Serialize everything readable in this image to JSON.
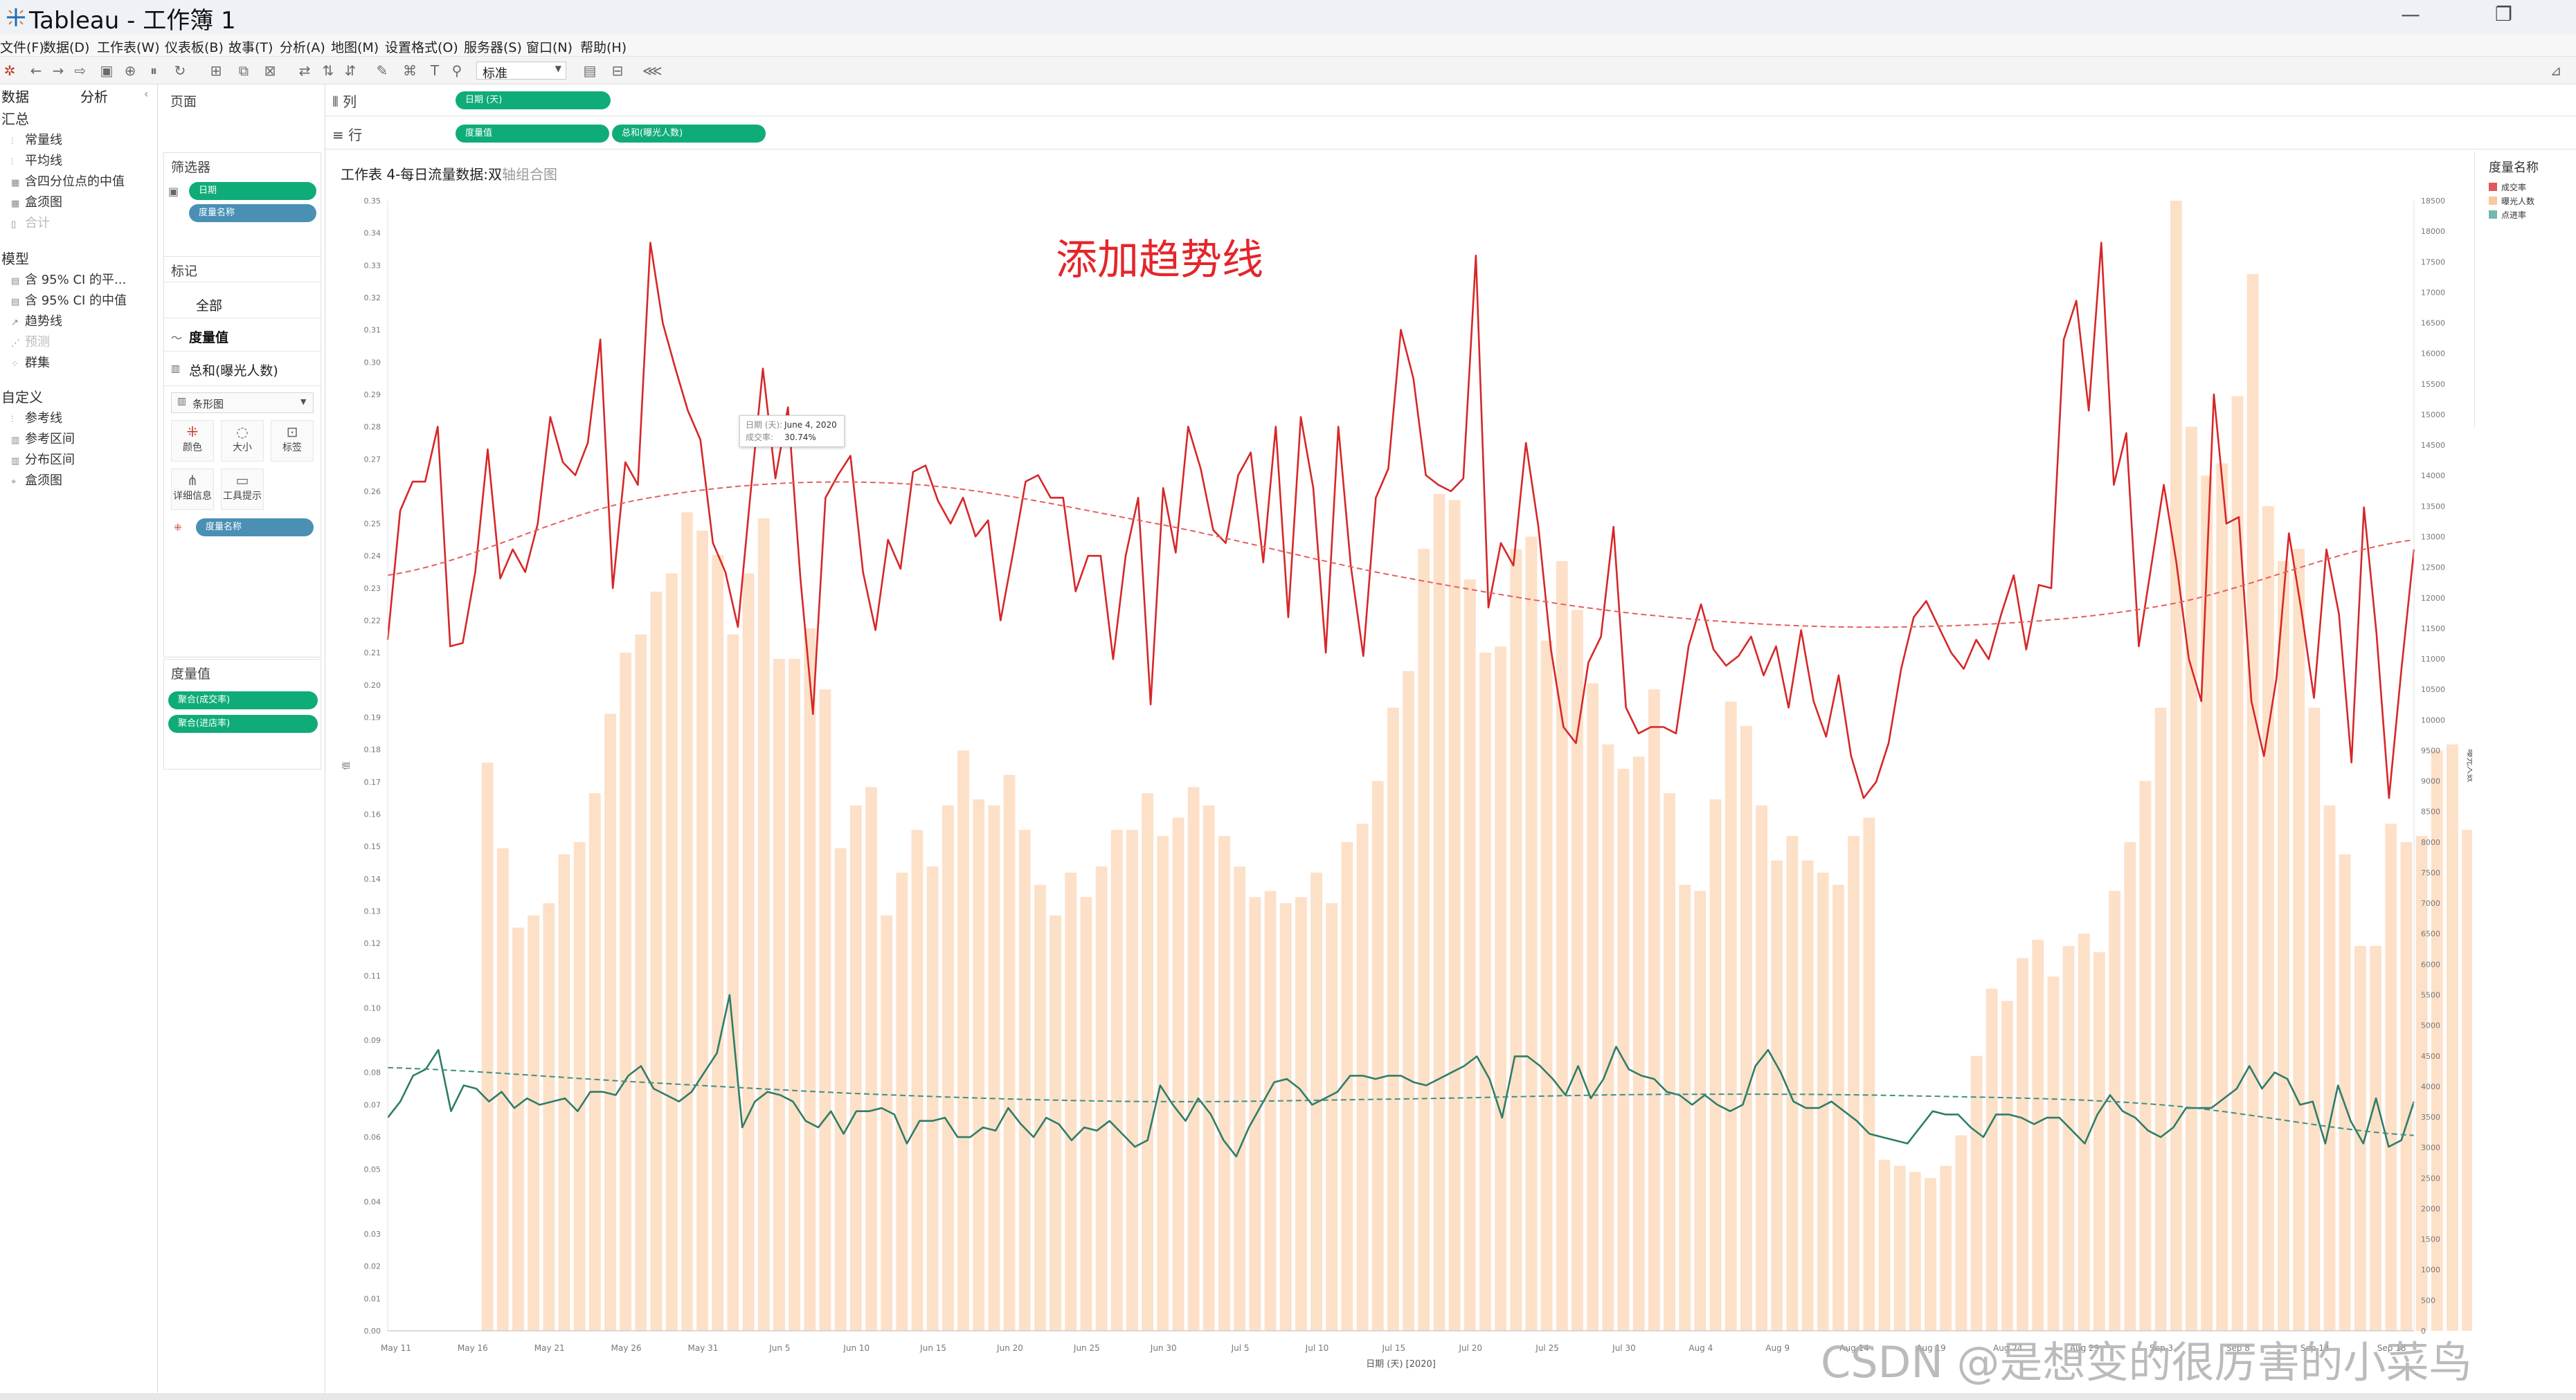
{
  "window": {
    "app_title": "Tableau - 工作簿 1",
    "minimize_glyph": "—",
    "restore_glyph": "❐"
  },
  "menu": [
    "文件(F)",
    "数据(D)",
    "工作表(W)",
    "仪表板(B)",
    "故事(T)",
    "分析(A)",
    "地图(M)",
    "设置格式(O)",
    "服务器(S)",
    "窗口(N)",
    "帮助(H)"
  ],
  "toolbar": {
    "fit_value": "标准",
    "icons": [
      "tableau-logo-icon",
      "undo-icon",
      "redo-icon",
      "forward-icon",
      "save-icon",
      "new-data-source-icon",
      "pause-icon",
      "refresh-icon",
      "new-sheet-icon",
      "duplicate-sheet-icon",
      "clear-sheet-icon",
      "swap-icon",
      "sort-asc-icon",
      "sort-desc-icon",
      "highlight-icon",
      "group-icon",
      "labels-icon",
      "pin-icon",
      "show-cards-icon",
      "presentation-icon",
      "share-icon",
      "show-me-icon"
    ]
  },
  "left_panel": {
    "tab_data": "数据",
    "tab_analytics": "分析",
    "summary_header": "汇总",
    "summary_items": [
      {
        "label": "常量线",
        "disabled": false
      },
      {
        "label": "平均线",
        "disabled": false
      },
      {
        "label": "含四分位点的中值",
        "disabled": false
      },
      {
        "label": "盒须图",
        "disabled": false
      },
      {
        "label": "合计",
        "disabled": true
      }
    ],
    "model_header": "模型",
    "model_items": [
      {
        "label": "含 95% CI 的平...",
        "disabled": false
      },
      {
        "label": "含 95% CI 的中值",
        "disabled": false
      },
      {
        "label": "趋势线",
        "disabled": false
      },
      {
        "label": "预测",
        "disabled": true
      },
      {
        "label": "群集",
        "disabled": false
      }
    ],
    "custom_header": "自定义",
    "custom_items": [
      {
        "label": "参考线",
        "disabled": false
      },
      {
        "label": "参考区间",
        "disabled": false
      },
      {
        "label": "分布区间",
        "disabled": false
      },
      {
        "label": "盒须图",
        "disabled": false
      }
    ]
  },
  "cards": {
    "pages_title": "页面",
    "filters_title": "筛选器",
    "filters": [
      "日期",
      "度量名称"
    ],
    "marks_title": "标记",
    "marks_all": "全部",
    "marks_measure_values": "度量值",
    "marks_sum_exposure": "总和(曝光人数)",
    "mark_type": "条形图",
    "mark_buttons": [
      {
        "label": "颜色",
        "glyph": "⁜"
      },
      {
        "label": "大小",
        "glyph": "◌"
      },
      {
        "label": "标签",
        "glyph": "⊡"
      },
      {
        "label": "详细信息",
        "glyph": "⋔"
      },
      {
        "label": "工具提示",
        "glyph": "▭"
      }
    ],
    "color_pill": "度量名称",
    "measure_values_title": "度量值",
    "measure_values": [
      "聚合(成交率)",
      "聚合(进店率)"
    ]
  },
  "shelves": {
    "columns_label": "列",
    "rows_label": "行",
    "columns_pills": [
      "日期 (天)"
    ],
    "rows_pills": [
      "度量值",
      "总和(曝光人数)"
    ]
  },
  "view": {
    "title_main": "工作表 4-每日流量数据:双",
    "title_muted": "轴组合图",
    "overlay_text": "添加趋势线",
    "watermark": "CSDN @是想变的很厉害的小菜鸟"
  },
  "tooltip": {
    "date_key": "日期 (天):",
    "date_value": "June 4, 2020",
    "rate_key": "成交率:",
    "rate_value": "30.74%"
  },
  "legend": {
    "title": "度量名称",
    "items": [
      {
        "label": "成交率",
        "color": "#e15759"
      },
      {
        "label": "曝光人数",
        "color": "#f9c89f"
      },
      {
        "label": "点进率",
        "color": "#76b7b2"
      }
    ]
  },
  "chart_data": {
    "type": "bar+line",
    "xlabel": "日期 (天) [2020]",
    "ylabel_left": "值",
    "ylabel_right": "曝光人数",
    "x_ticks": [
      "May 11",
      "May 16",
      "May 21",
      "May 26",
      "May 31",
      "Jun 5",
      "Jun 10",
      "Jun 15",
      "Jun 20",
      "Jun 25",
      "Jun 30",
      "Jul 5",
      "Jul 10",
      "Jul 15",
      "Jul 20",
      "Jul 25",
      "Jul 30",
      "Aug 4",
      "Aug 9",
      "Aug 14",
      "Aug 19",
      "Aug 24",
      "Aug 29",
      "Sep 3",
      "Sep 8",
      "Sep 13",
      "Sep 18"
    ],
    "y_left_ticks": [
      "0.00",
      "0.01",
      "0.02",
      "0.03",
      "0.04",
      "0.05",
      "0.06",
      "0.07",
      "0.08",
      "0.09",
      "0.10",
      "0.11",
      "0.12",
      "0.13",
      "0.14",
      "0.15",
      "0.16",
      "0.17",
      "0.18",
      "0.19",
      "0.20",
      "0.21",
      "0.22",
      "0.23",
      "0.24",
      "0.25",
      "0.26",
      "0.27",
      "0.28",
      "0.29",
      "0.30",
      "0.31",
      "0.32",
      "0.33",
      "0.34",
      "0.35"
    ],
    "y_right_ticks": [
      "0",
      "500",
      "1000",
      "1500",
      "2000",
      "2500",
      "3000",
      "3500",
      "4000",
      "4500",
      "5000",
      "5500",
      "6000",
      "6500",
      "7000",
      "7500",
      "8000",
      "8500",
      "9000",
      "9500",
      "10000",
      "10500",
      "11000",
      "11500",
      "12000",
      "12500",
      "13000",
      "13500",
      "14000",
      "14500",
      "15000",
      "15500",
      "16000",
      "16500",
      "17000",
      "17500",
      "18000",
      "18500"
    ],
    "y_left_range": [
      0,
      0.35
    ],
    "y_right_range": [
      0,
      18500
    ],
    "first_day_tick_index": 1.2,
    "series": [
      {
        "name": "曝光人数",
        "axis": "right",
        "kind": "bar",
        "color": "#fde0c8",
        "values": [
          9300,
          7900,
          6600,
          6800,
          7000,
          7800,
          8000,
          8800,
          10100,
          11100,
          11400,
          12100,
          12400,
          13400,
          13100,
          12700,
          11400,
          12400,
          13300,
          11000,
          11000,
          11500,
          10500,
          7900,
          8600,
          8900,
          6800,
          7500,
          8200,
          7600,
          8600,
          9500,
          8700,
          8600,
          9100,
          8200,
          7300,
          6800,
          7500,
          7100,
          7600,
          8200,
          8200,
          8800,
          8100,
          8400,
          8900,
          8600,
          8100,
          7600,
          7100,
          7200,
          7000,
          7100,
          7500,
          7000,
          8000,
          8300,
          9000,
          10200,
          10800,
          12800,
          13700,
          13600,
          12300,
          11100,
          11200,
          12800,
          13000,
          11300,
          12600,
          11800,
          10600,
          9600,
          9200,
          9400,
          10500,
          8800,
          7300,
          7200,
          8700,
          10300,
          9900,
          8600,
          7700,
          8100,
          7700,
          7500,
          7300,
          8100,
          8400,
          2800,
          2700,
          2600,
          2500,
          2700,
          3200,
          4500,
          5600,
          5400,
          6100,
          6400,
          5800,
          6300,
          6500,
          6200,
          7200,
          8000,
          9000,
          10200,
          18500,
          14800,
          14000,
          14200,
          15300,
          17300,
          13500,
          12600,
          12800,
          10200,
          8600,
          7800,
          6300,
          6300,
          8300,
          8000,
          8100,
          9500,
          9600,
          8200,
          6400,
          5800,
          4500,
          4000,
          4200,
          4500,
          4700,
          4800,
          4400,
          4300,
          3900,
          3200,
          2200,
          1500,
          1000,
          1200,
          1100,
          1000,
          800,
          700,
          600,
          900,
          700
        ]
      },
      {
        "name": "成交率",
        "axis": "left",
        "kind": "line",
        "color": "#d62728",
        "dasharray": "",
        "values": [
          0.214,
          0.254,
          0.263,
          0.263,
          0.28,
          0.212,
          0.213,
          0.235,
          0.273,
          0.233,
          0.242,
          0.235,
          0.25,
          0.283,
          0.269,
          0.265,
          0.275,
          0.307,
          0.23,
          0.269,
          0.262,
          0.337,
          0.312,
          0.298,
          0.285,
          0.276,
          0.244,
          0.235,
          0.218,
          0.259,
          0.298,
          0.264,
          0.286,
          0.233,
          0.191,
          0.258,
          0.265,
          0.271,
          0.235,
          0.217,
          0.245,
          0.236,
          0.266,
          0.268,
          0.257,
          0.25,
          0.258,
          0.246,
          0.251,
          0.22,
          0.241,
          0.263,
          0.265,
          0.258,
          0.258,
          0.229,
          0.24,
          0.24,
          0.208,
          0.24,
          0.258,
          0.194,
          0.261,
          0.241,
          0.28,
          0.267,
          0.248,
          0.244,
          0.265,
          0.272,
          0.238,
          0.28,
          0.221,
          0.283,
          0.261,
          0.21,
          0.28,
          0.237,
          0.209,
          0.258,
          0.267,
          0.31,
          0.295,
          0.265,
          0.262,
          0.26,
          0.264,
          0.333,
          0.224,
          0.244,
          0.237,
          0.275,
          0.249,
          0.211,
          0.187,
          0.182,
          0.207,
          0.215,
          0.249,
          0.193,
          0.185,
          0.187,
          0.187,
          0.185,
          0.212,
          0.225,
          0.211,
          0.206,
          0.209,
          0.215,
          0.203,
          0.212,
          0.193,
          0.217,
          0.195,
          0.184,
          0.203,
          0.178,
          0.165,
          0.17,
          0.182,
          0.205,
          0.221,
          0.226,
          0.218,
          0.21,
          0.205,
          0.214,
          0.208,
          0.222,
          0.234,
          0.211,
          0.231,
          0.23,
          0.307,
          0.319,
          0.285,
          0.337,
          0.262,
          0.278,
          0.212,
          0.237,
          0.262,
          0.238,
          0.208,
          0.195,
          0.29,
          0.25,
          0.252,
          0.195,
          0.178,
          0.202,
          0.247,
          0.223,
          0.196,
          0.242,
          0.222,
          0.176,
          0.255,
          0.216,
          0.165,
          0.205,
          0.242
        ]
      },
      {
        "name": "成交率 趋势线",
        "axis": "left",
        "kind": "line",
        "color": "#e2615c",
        "dasharray": "8,5",
        "values": [
          0.234,
          0.2575,
          0.2625,
          0.2505,
          0.2335,
          0.2215,
          0.218,
          0.2245,
          0.245
        ]
      },
      {
        "name": "点进率",
        "axis": "left",
        "kind": "line",
        "color": "#2e7d68",
        "dasharray": "",
        "values": [
          0.066,
          0.071,
          0.079,
          0.081,
          0.087,
          0.068,
          0.076,
          0.075,
          0.071,
          0.074,
          0.069,
          0.072,
          0.07,
          0.071,
          0.072,
          0.068,
          0.074,
          0.074,
          0.073,
          0.079,
          0.082,
          0.075,
          0.073,
          0.071,
          0.074,
          0.08,
          0.086,
          0.104,
          0.063,
          0.071,
          0.074,
          0.073,
          0.071,
          0.065,
          0.063,
          0.068,
          0.061,
          0.068,
          0.068,
          0.069,
          0.067,
          0.058,
          0.065,
          0.065,
          0.066,
          0.06,
          0.06,
          0.063,
          0.062,
          0.069,
          0.064,
          0.06,
          0.066,
          0.064,
          0.059,
          0.063,
          0.062,
          0.065,
          0.061,
          0.057,
          0.059,
          0.076,
          0.07,
          0.065,
          0.072,
          0.067,
          0.059,
          0.054,
          0.063,
          0.07,
          0.077,
          0.078,
          0.075,
          0.07,
          0.072,
          0.074,
          0.079,
          0.079,
          0.078,
          0.079,
          0.079,
          0.077,
          0.076,
          0.078,
          0.08,
          0.082,
          0.085,
          0.078,
          0.066,
          0.085,
          0.085,
          0.082,
          0.078,
          0.073,
          0.082,
          0.072,
          0.078,
          0.088,
          0.081,
          0.079,
          0.078,
          0.074,
          0.073,
          0.07,
          0.073,
          0.07,
          0.068,
          0.07,
          0.082,
          0.087,
          0.08,
          0.071,
          0.069,
          0.069,
          0.071,
          0.068,
          0.065,
          0.061,
          0.06,
          0.059,
          0.058,
          0.063,
          0.068,
          0.067,
          0.067,
          0.063,
          0.06,
          0.067,
          0.067,
          0.066,
          0.064,
          0.066,
          0.066,
          0.062,
          0.058,
          0.067,
          0.073,
          0.068,
          0.066,
          0.062,
          0.06,
          0.063,
          0.069,
          0.069,
          0.069,
          0.072,
          0.075,
          0.082,
          0.075,
          0.08,
          0.078,
          0.07,
          0.071,
          0.058,
          0.076,
          0.065,
          0.058,
          0.072,
          0.057,
          0.059,
          0.071
        ]
      },
      {
        "name": "点进率 趋势线",
        "axis": "left",
        "kind": "line",
        "color": "#3f8f80",
        "dasharray": "8,5",
        "values": [
          0.0815,
          0.077,
          0.073,
          0.071,
          0.0718,
          0.0732,
          0.0728,
          0.07,
          0.0605
        ]
      }
    ]
  }
}
